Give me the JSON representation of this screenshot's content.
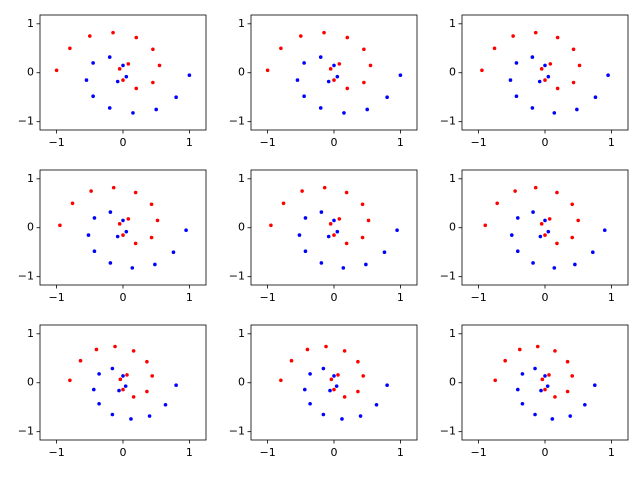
{
  "chart_data": [
    {
      "type": "scatter",
      "xlim": [
        -1.25,
        1.25
      ],
      "ylim": [
        -1.17,
        1.18
      ],
      "xticks": [
        {
          "value": -1,
          "label": "−1"
        },
        0,
        1
      ],
      "yticks": [
        {
          "value": -1,
          "label": "−1"
        },
        0,
        1
      ],
      "series": [
        {
          "color": "#ff0000",
          "x": [
            -1.0,
            -0.8,
            -0.5,
            -0.15,
            0.2,
            0.45,
            0.55,
            0.45,
            0.2,
            0.0,
            -0.05,
            0.08
          ],
          "values": [
            0.05,
            0.5,
            0.75,
            0.82,
            0.72,
            0.48,
            0.15,
            -0.2,
            -0.32,
            -0.15,
            0.08,
            0.18
          ]
        },
        {
          "color": "#0000ff",
          "x": [
            1.0,
            0.8,
            0.5,
            0.15,
            -0.2,
            -0.45,
            -0.55,
            -0.45,
            -0.2,
            0.0,
            0.05,
            -0.08
          ],
          "values": [
            -0.05,
            -0.5,
            -0.75,
            -0.82,
            -0.72,
            -0.48,
            -0.15,
            0.2,
            0.32,
            0.15,
            -0.08,
            -0.18
          ]
        }
      ]
    },
    {
      "type": "scatter",
      "xlim": [
        -1.25,
        1.25
      ],
      "ylim": [
        -1.17,
        1.18
      ],
      "xticks": [
        {
          "value": -1,
          "label": "−1"
        },
        0,
        1
      ],
      "yticks": [
        {
          "value": -1,
          "label": "−1"
        },
        0,
        1
      ],
      "series": [
        {
          "color": "#ff0000",
          "x": [
            -1.0,
            -0.8,
            -0.5,
            -0.15,
            0.2,
            0.45,
            0.55,
            0.45,
            0.2,
            0.0,
            -0.05,
            0.08
          ],
          "values": [
            0.05,
            0.5,
            0.75,
            0.82,
            0.72,
            0.48,
            0.15,
            -0.2,
            -0.32,
            -0.15,
            0.08,
            0.18
          ]
        },
        {
          "color": "#0000ff",
          "x": [
            1.0,
            0.8,
            0.5,
            0.15,
            -0.2,
            -0.45,
            -0.55,
            -0.45,
            -0.2,
            0.0,
            0.05,
            -0.08
          ],
          "values": [
            -0.05,
            -0.5,
            -0.75,
            -0.82,
            -0.72,
            -0.48,
            -0.15,
            0.2,
            0.32,
            0.15,
            -0.08,
            -0.18
          ]
        }
      ]
    },
    {
      "type": "scatter",
      "xlim": [
        -1.25,
        1.25
      ],
      "ylim": [
        -1.17,
        1.18
      ],
      "xticks": [
        {
          "value": -1,
          "label": "−1"
        },
        0,
        1
      ],
      "yticks": [
        {
          "value": -1,
          "label": "−1"
        },
        0,
        1
      ],
      "series": [
        {
          "color": "#ff0000",
          "x": [
            -0.95,
            -0.76,
            -0.48,
            -0.14,
            0.19,
            0.43,
            0.52,
            0.43,
            0.19,
            0.0,
            -0.05,
            0.08
          ],
          "values": [
            0.05,
            0.5,
            0.75,
            0.82,
            0.72,
            0.48,
            0.15,
            -0.2,
            -0.32,
            -0.15,
            0.08,
            0.18
          ]
        },
        {
          "color": "#0000ff",
          "x": [
            0.95,
            0.76,
            0.48,
            0.14,
            -0.19,
            -0.43,
            -0.52,
            -0.43,
            -0.19,
            0.0,
            0.05,
            -0.08
          ],
          "values": [
            -0.05,
            -0.5,
            -0.75,
            -0.82,
            -0.72,
            -0.48,
            -0.15,
            0.2,
            0.32,
            0.15,
            -0.08,
            -0.18
          ]
        }
      ]
    },
    {
      "type": "scatter",
      "xlim": [
        -1.25,
        1.25
      ],
      "ylim": [
        -1.17,
        1.18
      ],
      "xticks": [
        {
          "value": -1,
          "label": "−1"
        },
        0,
        1
      ],
      "yticks": [
        {
          "value": -1,
          "label": "−1"
        },
        0,
        1
      ],
      "series": [
        {
          "color": "#ff0000",
          "x": [
            -0.95,
            -0.76,
            -0.48,
            -0.14,
            0.19,
            0.43,
            0.52,
            0.43,
            0.19,
            0.0,
            -0.05,
            0.08
          ],
          "values": [
            0.05,
            0.5,
            0.75,
            0.82,
            0.72,
            0.48,
            0.15,
            -0.2,
            -0.32,
            -0.15,
            0.08,
            0.18
          ]
        },
        {
          "color": "#0000ff",
          "x": [
            0.95,
            0.76,
            0.48,
            0.14,
            -0.19,
            -0.43,
            -0.52,
            -0.43,
            -0.19,
            0.0,
            0.05,
            -0.08
          ],
          "values": [
            -0.05,
            -0.5,
            -0.75,
            -0.82,
            -0.72,
            -0.48,
            -0.15,
            0.2,
            0.32,
            0.15,
            -0.08,
            -0.18
          ]
        }
      ]
    },
    {
      "type": "scatter",
      "xlim": [
        -1.25,
        1.25
      ],
      "ylim": [
        -1.17,
        1.18
      ],
      "xticks": [
        {
          "value": -1,
          "label": "−1"
        },
        0,
        1
      ],
      "yticks": [
        {
          "value": -1,
          "label": "−1"
        },
        0,
        1
      ],
      "series": [
        {
          "color": "#ff0000",
          "x": [
            -0.95,
            -0.76,
            -0.48,
            -0.14,
            0.19,
            0.43,
            0.52,
            0.43,
            0.19,
            0.0,
            -0.05,
            0.08
          ],
          "values": [
            0.05,
            0.5,
            0.75,
            0.82,
            0.72,
            0.48,
            0.15,
            -0.2,
            -0.32,
            -0.15,
            0.08,
            0.18
          ]
        },
        {
          "color": "#0000ff",
          "x": [
            0.95,
            0.76,
            0.48,
            0.14,
            -0.19,
            -0.43,
            -0.52,
            -0.43,
            -0.19,
            0.0,
            0.05,
            -0.08
          ],
          "values": [
            -0.05,
            -0.5,
            -0.75,
            -0.82,
            -0.72,
            -0.48,
            -0.15,
            0.2,
            0.32,
            0.15,
            -0.08,
            -0.18
          ]
        }
      ]
    },
    {
      "type": "scatter",
      "xlim": [
        -1.25,
        1.25
      ],
      "ylim": [
        -1.17,
        1.18
      ],
      "xticks": [
        {
          "value": -1,
          "label": "−1"
        },
        0,
        1
      ],
      "yticks": [
        {
          "value": -1,
          "label": "−1"
        },
        0,
        1
      ],
      "series": [
        {
          "color": "#ff0000",
          "x": [
            -0.9,
            -0.72,
            -0.45,
            -0.14,
            0.18,
            0.41,
            0.5,
            0.41,
            0.18,
            0.0,
            -0.05,
            0.07
          ],
          "values": [
            0.05,
            0.5,
            0.75,
            0.82,
            0.72,
            0.48,
            0.15,
            -0.2,
            -0.32,
            -0.15,
            0.08,
            0.18
          ]
        },
        {
          "color": "#0000ff",
          "x": [
            0.9,
            0.72,
            0.45,
            0.14,
            -0.18,
            -0.41,
            -0.5,
            -0.41,
            -0.18,
            0.0,
            0.05,
            -0.07
          ],
          "values": [
            -0.05,
            -0.5,
            -0.75,
            -0.82,
            -0.72,
            -0.48,
            -0.15,
            0.2,
            0.32,
            0.15,
            -0.08,
            -0.18
          ]
        }
      ]
    },
    {
      "type": "scatter",
      "xlim": [
        -1.25,
        1.25
      ],
      "ylim": [
        -1.17,
        1.18
      ],
      "xticks": [
        {
          "value": -1,
          "label": "−1"
        },
        0,
        1
      ],
      "yticks": [
        {
          "value": -1,
          "label": "−1"
        },
        0,
        1
      ],
      "series": [
        {
          "color": "#ff0000",
          "x": [
            -0.8,
            -0.64,
            -0.4,
            -0.12,
            0.16,
            0.36,
            0.44,
            0.36,
            0.16,
            0.0,
            -0.04,
            0.06
          ],
          "values": [
            0.05,
            0.45,
            0.68,
            0.74,
            0.65,
            0.43,
            0.14,
            -0.18,
            -0.29,
            -0.14,
            0.07,
            0.16
          ]
        },
        {
          "color": "#0000ff",
          "x": [
            0.8,
            0.64,
            0.4,
            0.12,
            -0.16,
            -0.36,
            -0.44,
            -0.36,
            -0.16,
            0.0,
            0.04,
            -0.06
          ],
          "values": [
            -0.05,
            -0.45,
            -0.68,
            -0.74,
            -0.65,
            -0.43,
            -0.14,
            0.18,
            0.29,
            0.14,
            -0.07,
            -0.16
          ]
        }
      ]
    },
    {
      "type": "scatter",
      "xlim": [
        -1.25,
        1.25
      ],
      "ylim": [
        -1.17,
        1.18
      ],
      "xticks": [
        {
          "value": -1,
          "label": "−1"
        },
        0,
        1
      ],
      "yticks": [
        {
          "value": -1,
          "label": "−1"
        },
        0,
        1
      ],
      "series": [
        {
          "color": "#ff0000",
          "x": [
            -0.8,
            -0.64,
            -0.4,
            -0.12,
            0.16,
            0.36,
            0.44,
            0.36,
            0.16,
            0.0,
            -0.04,
            0.06
          ],
          "values": [
            0.05,
            0.45,
            0.68,
            0.74,
            0.65,
            0.43,
            0.14,
            -0.18,
            -0.29,
            -0.14,
            0.07,
            0.16
          ]
        },
        {
          "color": "#0000ff",
          "x": [
            0.8,
            0.64,
            0.4,
            0.12,
            -0.16,
            -0.36,
            -0.44,
            -0.36,
            -0.16,
            0.0,
            0.04,
            -0.06
          ],
          "values": [
            -0.05,
            -0.45,
            -0.68,
            -0.74,
            -0.65,
            -0.43,
            -0.14,
            0.18,
            0.29,
            0.14,
            -0.07,
            -0.16
          ]
        }
      ]
    },
    {
      "type": "scatter",
      "xlim": [
        -1.25,
        1.25
      ],
      "ylim": [
        -1.17,
        1.18
      ],
      "xticks": [
        {
          "value": -1,
          "label": "−1"
        },
        0,
        1
      ],
      "yticks": [
        {
          "value": -1,
          "label": "−1"
        },
        0,
        1
      ],
      "series": [
        {
          "color": "#ff0000",
          "x": [
            -0.75,
            -0.6,
            -0.38,
            -0.11,
            0.15,
            0.34,
            0.41,
            0.34,
            0.15,
            0.0,
            -0.04,
            0.06
          ],
          "values": [
            0.05,
            0.45,
            0.68,
            0.74,
            0.65,
            0.43,
            0.14,
            -0.18,
            -0.29,
            -0.14,
            0.07,
            0.16
          ]
        },
        {
          "color": "#0000ff",
          "x": [
            0.75,
            0.6,
            0.38,
            0.11,
            -0.15,
            -0.34,
            -0.41,
            -0.34,
            -0.15,
            0.0,
            0.04,
            -0.06
          ],
          "values": [
            -0.05,
            -0.45,
            -0.68,
            -0.74,
            -0.65,
            -0.43,
            -0.14,
            0.18,
            0.29,
            0.14,
            -0.07,
            -0.16
          ]
        }
      ]
    }
  ]
}
